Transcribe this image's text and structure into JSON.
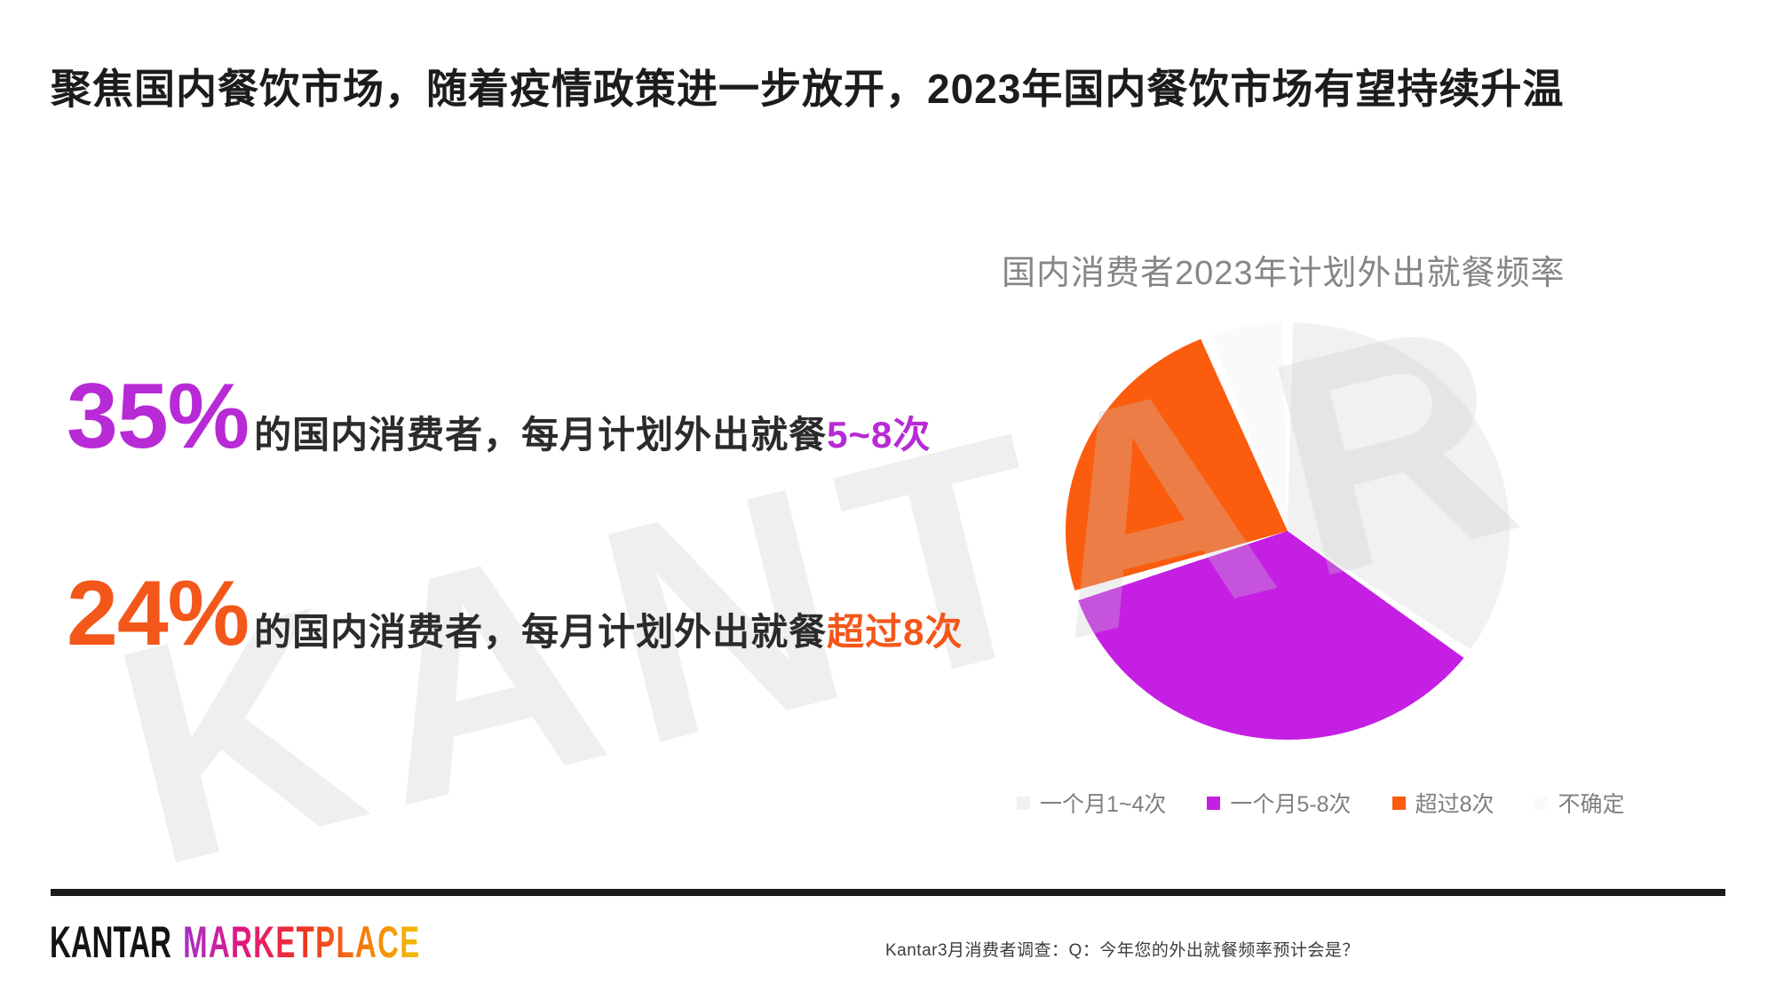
{
  "slide": {
    "title": "聚焦国内餐饮市场，随着疫情政策进一步放开，2023年国内餐饮市场有望持续升温"
  },
  "watermark": "KANTAR",
  "stats": [
    {
      "value": "35%",
      "desc": "的国内消费者，每月计划外出就餐",
      "highlight": "5~8次",
      "color": "#b72ad5"
    },
    {
      "value": "24%",
      "desc": "的国内消费者，每月计划外出就餐",
      "highlight": "超过8次",
      "color": "#f4571a"
    }
  ],
  "chart_data": {
    "type": "pie",
    "title": "国内消费者2023年计划外出就餐频率",
    "labels": [
      "一个月1~4次",
      "一个月5-8次",
      "超过8次",
      "不确定"
    ],
    "values": [
      35,
      35,
      24,
      6
    ],
    "colors": [
      "#f2f1f2",
      "#c51fe4",
      "#fb5c0d",
      "#fafafa"
    ],
    "start_angle_deg": 0,
    "direction": "clockwise",
    "legend_position": "bottom",
    "separator_color": "#ffffff",
    "title_color": "#868686",
    "legend_text_color": "#7f7f7f"
  },
  "footer": {
    "brand": "KANTAR",
    "product": "MARKETPLACE",
    "brand_color": "#141414",
    "product_gradient": [
      "#a531c6",
      "#e0187f",
      "#ee3124",
      "#f5790d",
      "#f2c103"
    ],
    "note": "Kantar3月消费者调查：Q：今年您的外出就餐频率预计会是？"
  }
}
